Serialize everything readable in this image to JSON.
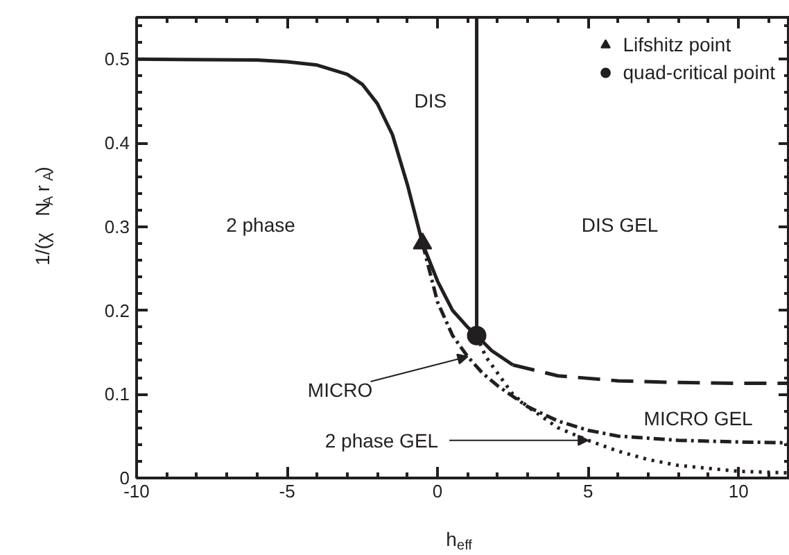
{
  "chart_data": {
    "type": "line",
    "xlabel": "h$_{eff}$",
    "ylabel": "1/(χ N$_{A}$ r$_{A}$)",
    "xlim": [
      -10,
      11.7
    ],
    "ylim": [
      0,
      0.55
    ],
    "xticks": [
      -10,
      -5,
      0,
      5,
      10
    ],
    "yticks": [
      0,
      0.1,
      0.2,
      0.3,
      0.4,
      0.5
    ],
    "legend": "top right",
    "grid": false,
    "series": [
      {
        "line_style": "solid",
        "color": "#231f20",
        "x": [
          -10,
          -6,
          -5,
          -4,
          -3,
          -2.5,
          -2,
          -1.5,
          -1,
          -0.5,
          0,
          0.5,
          1,
          1.3,
          1.8,
          2.5
        ],
        "values": [
          0.5,
          0.499,
          0.497,
          0.493,
          0.482,
          0.47,
          0.447,
          0.41,
          0.35,
          0.28,
          0.235,
          0.2,
          0.18,
          0.17,
          0.152,
          0.135
        ]
      },
      {
        "line_style": "dashed",
        "color": "#231f20",
        "x": [
          2.5,
          4,
          6,
          8,
          10,
          11.7
        ],
        "values": [
          0.135,
          0.122,
          0.116,
          0.114,
          0.113,
          0.113
        ]
      },
      {
        "line_style": "solid",
        "color": "#231f20",
        "x": [
          1.3,
          1.3
        ],
        "values": [
          0.17,
          0.55
        ]
      },
      {
        "line_style": "dashdot",
        "color": "#231f20",
        "x": [
          -0.5,
          0,
          0.5,
          1,
          1.5,
          2,
          3,
          4,
          5,
          6,
          8,
          10,
          11.7
        ],
        "values": [
          0.28,
          0.21,
          0.17,
          0.145,
          0.125,
          0.11,
          0.085,
          0.068,
          0.057,
          0.05,
          0.045,
          0.043,
          0.042
        ]
      },
      {
        "line_style": "dotted",
        "color": "#231f20",
        "x": [
          1.3,
          1.6,
          2,
          2.5,
          3,
          4,
          5,
          6,
          7,
          8,
          10,
          11.7
        ],
        "values": [
          0.17,
          0.145,
          0.125,
          0.1,
          0.085,
          0.06,
          0.045,
          0.032,
          0.022,
          0.015,
          0.008,
          0.006
        ]
      },
      {
        "type": "scatter",
        "marker": "triangle",
        "name": "Lifshitz point",
        "color": "#231f20",
        "x": [
          -0.5
        ],
        "values": [
          0.28
        ]
      },
      {
        "type": "scatter",
        "marker": "circle",
        "name": "quad-critical point",
        "color": "#231f20",
        "x": [
          1.3
        ],
        "values": [
          0.17
        ]
      }
    ],
    "annotations": [
      "DIS",
      "2 phase",
      "DIS GEL",
      "MICRO GEL",
      {
        "text": "MICRO",
        "x": 1.0,
        "y": 0.145
      },
      {
        "text": "2 phase GEL",
        "x": 5,
        "y": 0.045
      }
    ]
  }
}
